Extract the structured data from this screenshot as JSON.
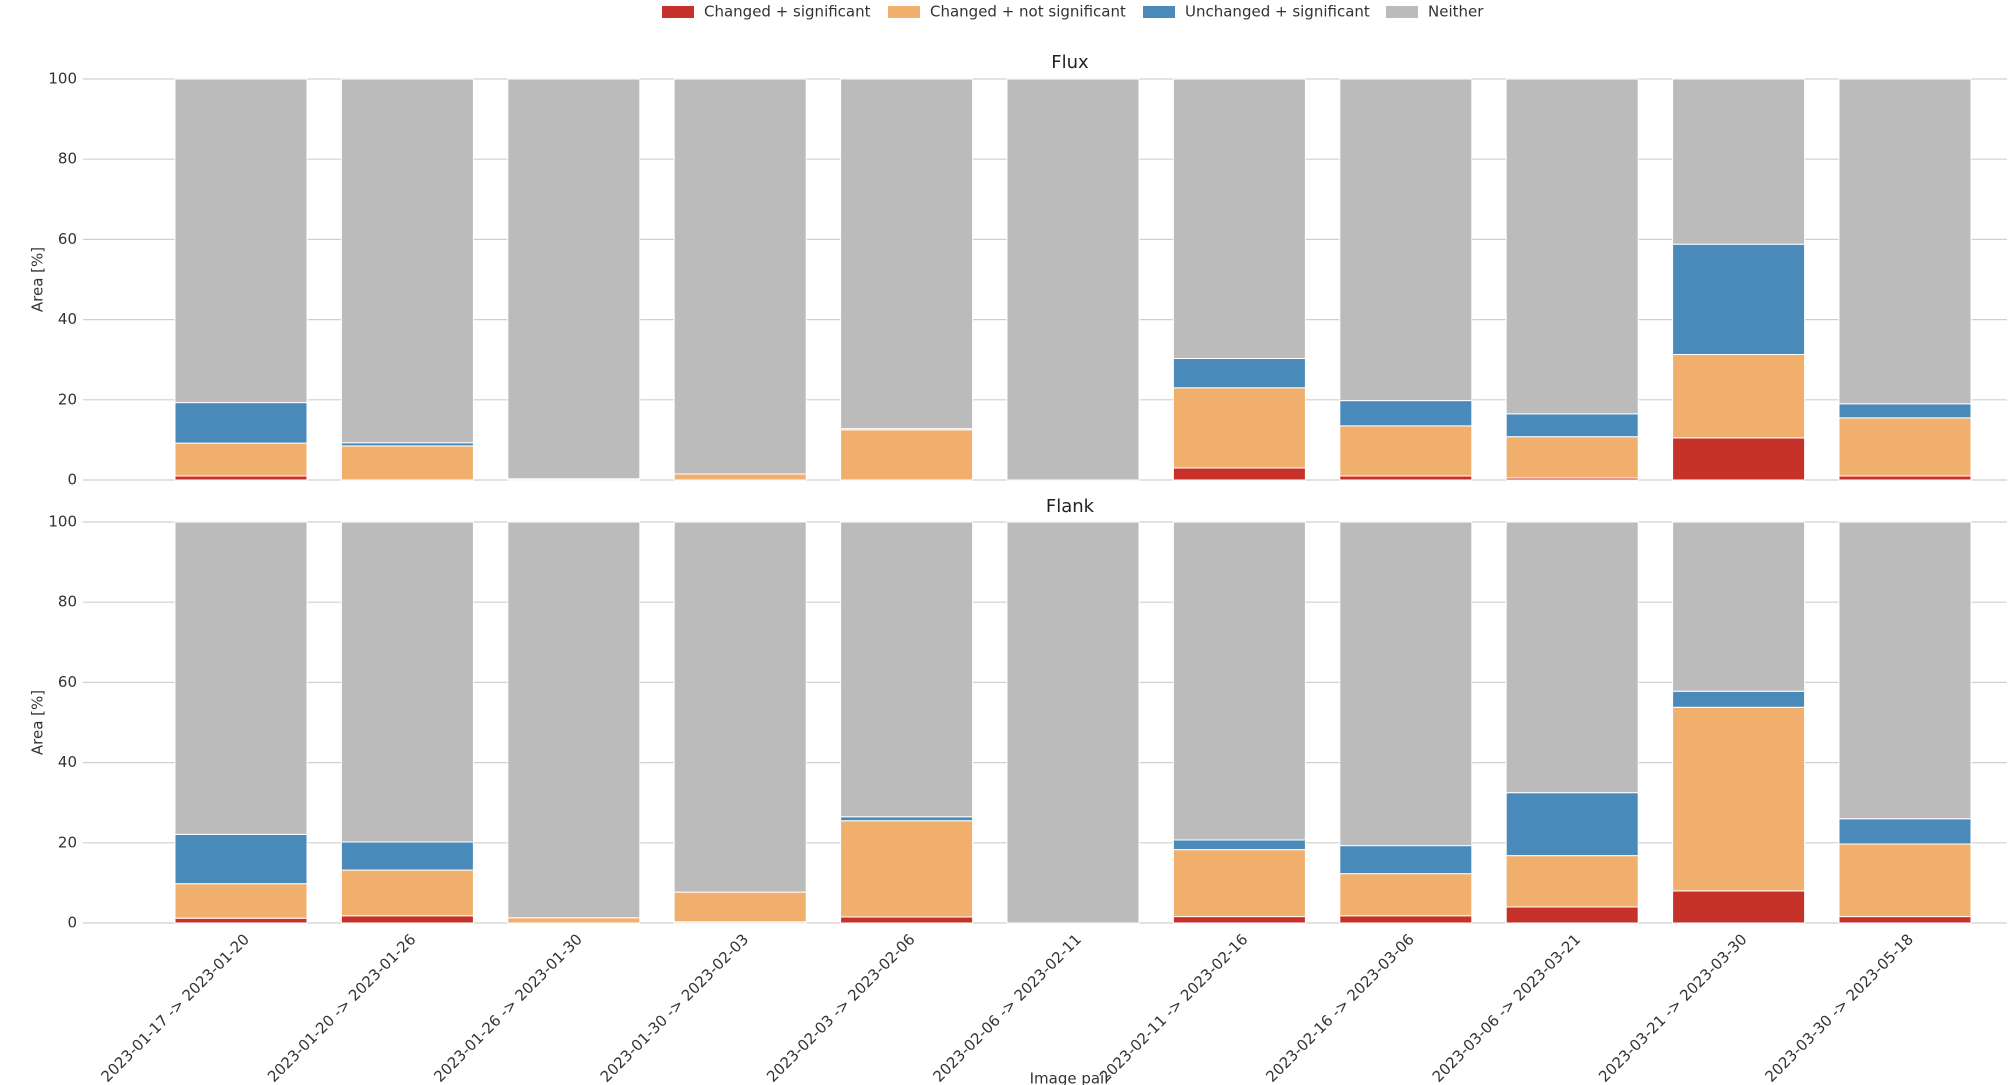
{
  "chart_data": [
    {
      "type": "stacked-bar",
      "title": "Flux",
      "ylabel": "Area [%]",
      "ylim": [
        0,
        100
      ],
      "yticks": [
        0,
        20,
        40,
        60,
        80,
        100
      ],
      "grid": true,
      "series": [
        {
          "name": "Changed + significant",
          "color": "#c6322a",
          "values": [
            1,
            0,
            0,
            0,
            0,
            0,
            3,
            1,
            0.5,
            10.5,
            1
          ]
        },
        {
          "name": "Changed + not significant",
          "color": "#f0af6c",
          "values": [
            8.2,
            8.5,
            0.3,
            1.5,
            12.5,
            0,
            20,
            12.5,
            10.3,
            20.8,
            14.5
          ]
        },
        {
          "name": "Unchanged + significant",
          "color": "#4a8aba",
          "values": [
            10.1,
            0.8,
            0,
            0,
            0.3,
            0,
            7.3,
            6.3,
            5.7,
            27.5,
            3.5
          ]
        },
        {
          "name": "Neither",
          "color": "#bbbbbb",
          "values": [
            80.7,
            90.7,
            99.7,
            98.5,
            87.2,
            100,
            69.7,
            80.2,
            83.5,
            41.2,
            81
          ]
        }
      ]
    },
    {
      "type": "stacked-bar",
      "title": "Flank",
      "ylabel": "Area [%]",
      "xlabel": "Image pair",
      "categories": [
        "2023-01-17 -> 2023-01-20",
        "2023-01-20 -> 2023-01-26",
        "2023-01-26 -> 2023-01-30",
        "2023-01-30 -> 2023-02-03",
        "2023-02-03 -> 2023-02-06",
        "2023-02-06 -> 2023-02-11",
        "2023-02-11 -> 2023-02-16",
        "2023-02-16 -> 2023-03-06",
        "2023-03-06 -> 2023-03-21",
        "2023-03-21 -> 2023-03-30",
        "2023-03-30 -> 2023-05-18"
      ],
      "ylim": [
        0,
        100
      ],
      "yticks": [
        0,
        20,
        40,
        60,
        80,
        100
      ],
      "grid": true,
      "series": [
        {
          "color": "#c6322a",
          "values": [
            1.2,
            1.8,
            0,
            0.3,
            1.5,
            0,
            1.6,
            1.8,
            4,
            8,
            1.6
          ]
        },
        {
          "color": "#f0af6c",
          "values": [
            8.6,
            11.4,
            1.3,
            7.4,
            24,
            0,
            16.7,
            10.5,
            12.8,
            45.8,
            18.1
          ]
        },
        {
          "color": "#4a8aba",
          "values": [
            12.3,
            7,
            0,
            0,
            1,
            0,
            2.4,
            7,
            15.7,
            4,
            6.3
          ]
        },
        {
          "color": "#bbbbbb",
          "values": [
            77.9,
            79.8,
            98.7,
            92.3,
            73.5,
            100,
            79.3,
            80.7,
            67.5,
            42.2,
            74
          ]
        }
      ]
    }
  ]
}
